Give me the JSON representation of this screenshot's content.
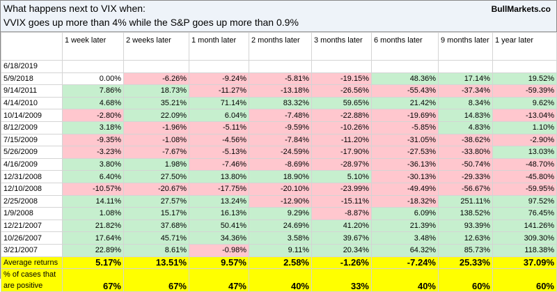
{
  "header": {
    "title": "What happens next to VIX when:",
    "subtitle": "VVIX goes up more than 4% while the S&P goes up more than 0.9%",
    "brand": "BullMarkets.co"
  },
  "table": {
    "columns": [
      "1 week later",
      "2 weeks later",
      "1 month later",
      "2 months later",
      "3 months later",
      "6 months later",
      "9 months later",
      "1 year later"
    ],
    "rows": [
      {
        "date": "6/18/2019",
        "values": []
      },
      {
        "date": "5/9/2018",
        "values": [
          "0.00%",
          "-6.26%",
          "-9.24%",
          "-5.81%",
          "-19.15%",
          "48.36%",
          "17.14%",
          "19.52%"
        ]
      },
      {
        "date": "9/14/2011",
        "values": [
          "7.86%",
          "18.73%",
          "-11.27%",
          "-13.18%",
          "-26.56%",
          "-55.43%",
          "-37.34%",
          "-59.39%"
        ]
      },
      {
        "date": "4/14/2010",
        "values": [
          "4.68%",
          "35.21%",
          "71.14%",
          "83.32%",
          "59.65%",
          "21.42%",
          "8.34%",
          "9.62%"
        ]
      },
      {
        "date": "10/14/2009",
        "values": [
          "-2.80%",
          "22.09%",
          "6.04%",
          "-7.48%",
          "-22.88%",
          "-19.69%",
          "14.83%",
          "-13.04%"
        ]
      },
      {
        "date": "8/12/2009",
        "values": [
          "3.18%",
          "-1.96%",
          "-5.11%",
          "-9.59%",
          "-10.26%",
          "-5.85%",
          "4.83%",
          "1.10%"
        ]
      },
      {
        "date": "7/15/2009",
        "values": [
          "-9.35%",
          "-1.08%",
          "-4.56%",
          "-7.84%",
          "-11.20%",
          "-31.05%",
          "-38.62%",
          "-2.90%"
        ]
      },
      {
        "date": "5/26/2009",
        "values": [
          "-3.23%",
          "-7.67%",
          "-5.13%",
          "-24.59%",
          "-17.90%",
          "-27.53%",
          "-33.80%",
          "13.03%"
        ]
      },
      {
        "date": "4/16/2009",
        "values": [
          "3.80%",
          "1.98%",
          "-7.46%",
          "-8.69%",
          "-28.97%",
          "-36.13%",
          "-50.74%",
          "-48.70%"
        ]
      },
      {
        "date": "12/31/2008",
        "values": [
          "6.40%",
          "27.50%",
          "13.80%",
          "18.90%",
          "5.10%",
          "-30.13%",
          "-29.33%",
          "-45.80%"
        ]
      },
      {
        "date": "12/10/2008",
        "values": [
          "-10.57%",
          "-20.67%",
          "-17.75%",
          "-20.10%",
          "-23.99%",
          "-49.49%",
          "-56.67%",
          "-59.95%"
        ]
      },
      {
        "date": "2/25/2008",
        "values": [
          "14.11%",
          "27.57%",
          "13.24%",
          "-12.90%",
          "-15.11%",
          "-18.32%",
          "251.11%",
          "97.52%"
        ]
      },
      {
        "date": "1/9/2008",
        "values": [
          "1.08%",
          "15.17%",
          "16.13%",
          "9.29%",
          "-8.87%",
          "6.09%",
          "138.52%",
          "76.45%"
        ]
      },
      {
        "date": "12/21/2007",
        "values": [
          "21.82%",
          "37.68%",
          "50.41%",
          "24.69%",
          "41.20%",
          "21.39%",
          "93.39%",
          "141.26%"
        ]
      },
      {
        "date": "10/26/2007",
        "values": [
          "17.64%",
          "45.71%",
          "34.36%",
          "3.58%",
          "39.67%",
          "3.48%",
          "12.63%",
          "309.30%"
        ]
      },
      {
        "date": "3/21/2007",
        "values": [
          "22.89%",
          "8.61%",
          "-0.98%",
          "9.11%",
          "20.34%",
          "64.32%",
          "85.73%",
          "118.38%"
        ]
      }
    ],
    "summary": [
      {
        "label": "Average returns",
        "values": [
          "5.17%",
          "13.51%",
          "9.57%",
          "2.58%",
          "-1.26%",
          "-7.24%",
          "25.33%",
          "37.09%"
        ]
      },
      {
        "label": "% of cases that are positive",
        "values": [
          "67%",
          "67%",
          "47%",
          "40%",
          "33%",
          "40%",
          "60%",
          "60%"
        ]
      }
    ]
  }
}
